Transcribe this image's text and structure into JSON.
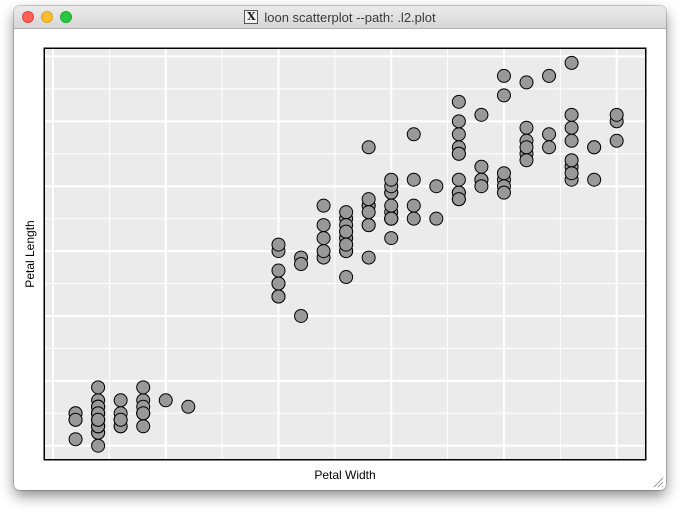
{
  "window": {
    "title": "loon scatterplot --path: .l2.plot",
    "app_icon": "x11-icon"
  },
  "plot": {
    "background": "#ebebeb",
    "grid_color": "#ffffff",
    "point_fill": "#999999",
    "point_stroke": "#000000"
  },
  "chart_data": {
    "type": "scatter",
    "xlabel": "Petal Width",
    "ylabel": "Petal Length",
    "xlim": [
      -0.04,
      2.63
    ],
    "ylim": [
      0.78,
      7.13
    ],
    "grid": true,
    "tick_labels_shown": false,
    "points": [
      [
        0.2,
        1.4
      ],
      [
        0.2,
        1.4
      ],
      [
        0.2,
        1.3
      ],
      [
        0.2,
        1.5
      ],
      [
        0.2,
        1.4
      ],
      [
        0.4,
        1.7
      ],
      [
        0.3,
        1.4
      ],
      [
        0.2,
        1.5
      ],
      [
        0.2,
        1.4
      ],
      [
        0.1,
        1.5
      ],
      [
        0.2,
        1.5
      ],
      [
        0.2,
        1.6
      ],
      [
        0.1,
        1.4
      ],
      [
        0.1,
        1.1
      ],
      [
        0.2,
        1.2
      ],
      [
        0.4,
        1.5
      ],
      [
        0.4,
        1.3
      ],
      [
        0.3,
        1.4
      ],
      [
        0.3,
        1.7
      ],
      [
        0.3,
        1.5
      ],
      [
        0.2,
        1.7
      ],
      [
        0.4,
        1.5
      ],
      [
        0.2,
        1.0
      ],
      [
        0.5,
        1.7
      ],
      [
        0.2,
        1.9
      ],
      [
        0.2,
        1.6
      ],
      [
        0.4,
        1.6
      ],
      [
        0.2,
        1.5
      ],
      [
        0.2,
        1.4
      ],
      [
        0.2,
        1.6
      ],
      [
        0.2,
        1.6
      ],
      [
        0.4,
        1.5
      ],
      [
        0.1,
        1.5
      ],
      [
        0.2,
        1.4
      ],
      [
        0.2,
        1.5
      ],
      [
        0.2,
        1.2
      ],
      [
        0.2,
        1.3
      ],
      [
        0.1,
        1.4
      ],
      [
        0.2,
        1.3
      ],
      [
        0.2,
        1.5
      ],
      [
        0.3,
        1.3
      ],
      [
        0.3,
        1.3
      ],
      [
        0.2,
        1.3
      ],
      [
        0.6,
        1.6
      ],
      [
        0.4,
        1.9
      ],
      [
        0.3,
        1.4
      ],
      [
        0.2,
        1.6
      ],
      [
        0.2,
        1.4
      ],
      [
        0.2,
        1.5
      ],
      [
        0.2,
        1.4
      ],
      [
        1.4,
        4.7
      ],
      [
        1.5,
        4.5
      ],
      [
        1.5,
        4.9
      ],
      [
        1.3,
        4.0
      ],
      [
        1.5,
        4.6
      ],
      [
        1.3,
        4.5
      ],
      [
        1.6,
        4.7
      ],
      [
        1.0,
        3.3
      ],
      [
        1.3,
        4.6
      ],
      [
        1.4,
        3.9
      ],
      [
        1.0,
        3.5
      ],
      [
        1.5,
        4.2
      ],
      [
        1.0,
        4.0
      ],
      [
        1.4,
        4.7
      ],
      [
        1.3,
        3.6
      ],
      [
        1.4,
        4.4
      ],
      [
        1.5,
        4.5
      ],
      [
        1.0,
        4.1
      ],
      [
        1.5,
        4.5
      ],
      [
        1.1,
        3.9
      ],
      [
        1.8,
        4.8
      ],
      [
        1.3,
        4.0
      ],
      [
        1.5,
        4.9
      ],
      [
        1.2,
        4.7
      ],
      [
        1.3,
        4.3
      ],
      [
        1.4,
        4.4
      ],
      [
        1.4,
        4.8
      ],
      [
        1.7,
        5.0
      ],
      [
        1.5,
        4.5
      ],
      [
        1.0,
        3.5
      ],
      [
        1.1,
        3.8
      ],
      [
        1.0,
        3.7
      ],
      [
        1.2,
        3.9
      ],
      [
        1.6,
        5.1
      ],
      [
        1.5,
        4.5
      ],
      [
        1.6,
        4.5
      ],
      [
        1.5,
        4.7
      ],
      [
        1.3,
        4.4
      ],
      [
        1.3,
        4.1
      ],
      [
        1.3,
        4.0
      ],
      [
        1.2,
        4.4
      ],
      [
        1.4,
        4.6
      ],
      [
        1.2,
        4.0
      ],
      [
        1.0,
        3.3
      ],
      [
        1.3,
        4.2
      ],
      [
        1.2,
        4.2
      ],
      [
        1.3,
        4.2
      ],
      [
        1.3,
        4.3
      ],
      [
        1.1,
        3.0
      ],
      [
        1.3,
        4.1
      ],
      [
        2.5,
        6.0
      ],
      [
        1.9,
        5.1
      ],
      [
        2.1,
        5.9
      ],
      [
        1.8,
        5.6
      ],
      [
        2.2,
        5.8
      ],
      [
        2.1,
        6.6
      ],
      [
        1.7,
        4.5
      ],
      [
        1.8,
        6.3
      ],
      [
        1.8,
        5.8
      ],
      [
        2.5,
        6.1
      ],
      [
        2.0,
        5.1
      ],
      [
        1.9,
        5.3
      ],
      [
        2.1,
        5.5
      ],
      [
        2.0,
        5.0
      ],
      [
        2.4,
        5.1
      ],
      [
        2.3,
        5.3
      ],
      [
        1.8,
        5.5
      ],
      [
        2.2,
        6.7
      ],
      [
        2.3,
        6.9
      ],
      [
        1.5,
        5.0
      ],
      [
        2.3,
        5.7
      ],
      [
        2.0,
        4.9
      ],
      [
        2.0,
        6.7
      ],
      [
        1.8,
        4.9
      ],
      [
        2.1,
        5.7
      ],
      [
        1.8,
        6.0
      ],
      [
        1.8,
        4.8
      ],
      [
        1.8,
        4.9
      ],
      [
        2.1,
        5.6
      ],
      [
        1.6,
        5.8
      ],
      [
        1.9,
        6.1
      ],
      [
        2.0,
        6.4
      ],
      [
        2.2,
        5.6
      ],
      [
        1.5,
        5.1
      ],
      [
        1.4,
        5.6
      ],
      [
        2.3,
        6.1
      ],
      [
        2.4,
        5.6
      ],
      [
        1.8,
        5.5
      ],
      [
        1.8,
        4.8
      ],
      [
        2.1,
        5.4
      ],
      [
        2.4,
        5.6
      ],
      [
        2.3,
        5.1
      ],
      [
        1.9,
        5.1
      ],
      [
        2.3,
        5.9
      ],
      [
        2.5,
        5.7
      ],
      [
        2.3,
        5.2
      ],
      [
        1.9,
        5.0
      ],
      [
        2.0,
        5.2
      ],
      [
        2.3,
        5.4
      ],
      [
        1.8,
        5.1
      ]
    ]
  }
}
